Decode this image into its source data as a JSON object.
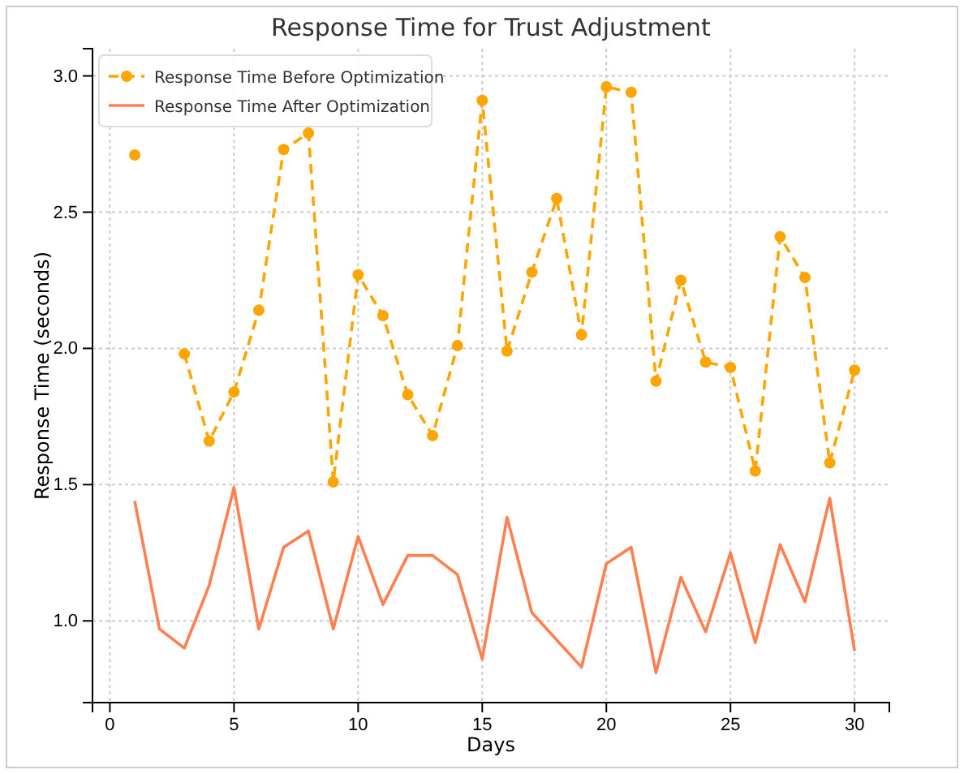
{
  "chart_data": {
    "type": "line",
    "title": "Response Time for Trust Adjustment",
    "xlabel": "Days",
    "ylabel": "Response Time (seconds)",
    "x": [
      1,
      2,
      3,
      4,
      5,
      6,
      7,
      8,
      9,
      10,
      11,
      12,
      13,
      14,
      15,
      16,
      17,
      18,
      19,
      20,
      21,
      22,
      23,
      24,
      25,
      26,
      27,
      28,
      29,
      30
    ],
    "series": [
      {
        "name": "Response Time Before Optimization",
        "color": "#ffa500",
        "marker": "circle",
        "line_style": "dashed",
        "values": [
          2.71,
          null,
          1.98,
          1.66,
          1.84,
          2.14,
          2.73,
          2.79,
          1.51,
          2.27,
          2.12,
          1.83,
          1.68,
          2.01,
          2.91,
          1.99,
          2.28,
          2.55,
          2.05,
          2.96,
          2.94,
          1.88,
          2.25,
          1.95,
          1.93,
          1.55,
          2.41,
          2.26,
          1.58,
          1.92
        ]
      },
      {
        "name": "Response Time After Optimization",
        "color": "#ff7f50",
        "marker": "none",
        "line_style": "solid",
        "values": [
          1.44,
          0.97,
          0.9,
          1.13,
          1.49,
          0.97,
          1.27,
          1.33,
          0.97,
          1.31,
          1.06,
          1.24,
          1.24,
          1.17,
          0.86,
          1.38,
          1.03,
          0.93,
          0.83,
          1.21,
          1.27,
          0.81,
          1.16,
          0.96,
          1.25,
          0.92,
          1.28,
          1.07,
          1.45,
          0.89
        ]
      }
    ],
    "xlim": [
      -0.7,
      31.4
    ],
    "xticks": [
      0,
      5,
      10,
      15,
      20,
      25,
      30
    ],
    "ylim": [
      0.7,
      3.1
    ],
    "yticks": [
      {
        "value": 1,
        "label": "1.0"
      },
      {
        "value": 1.5,
        "label": "1.5"
      },
      {
        "value": 2,
        "label": "2.0"
      },
      {
        "value": 2.5,
        "label": "2.5"
      },
      {
        "value": 3,
        "label": "3.0"
      }
    ],
    "grid": true,
    "legend": "top left"
  }
}
